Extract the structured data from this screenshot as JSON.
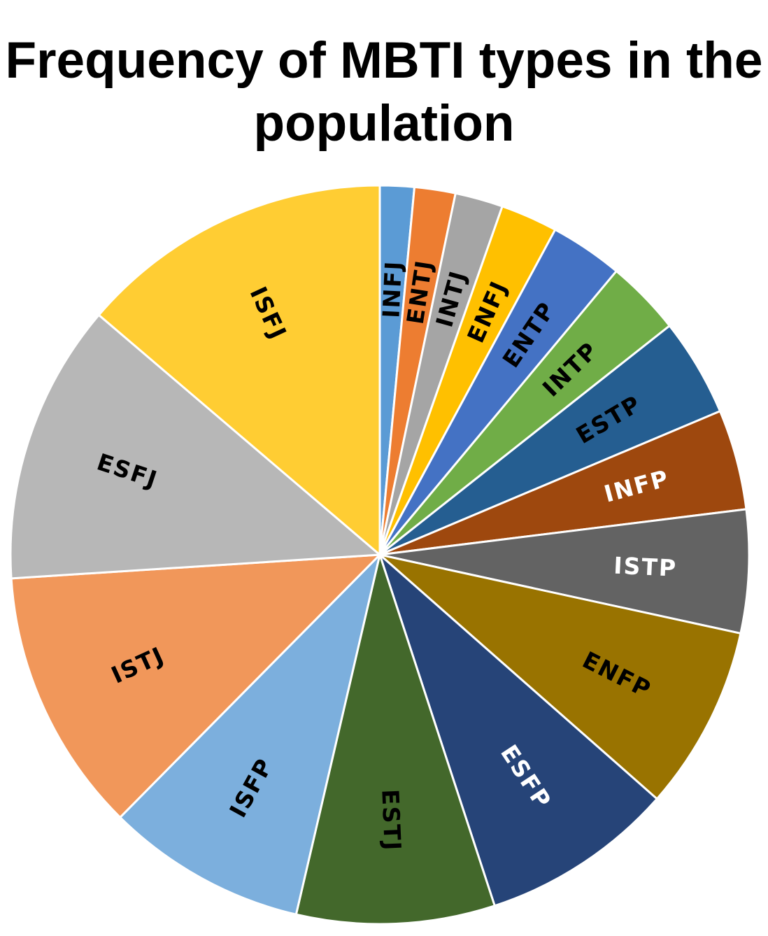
{
  "chart_data": {
    "type": "pie",
    "title": "Frequency of MBTI types in the population",
    "start_angle_deg": 0,
    "direction": "clockwise",
    "legend": "none",
    "slices": [
      {
        "label": "INFJ",
        "value": 1.5,
        "color": "#5b9bd5",
        "label_color": "#000000"
      },
      {
        "label": "ENTJ",
        "value": 1.8,
        "color": "#ed7d31",
        "label_color": "#000000"
      },
      {
        "label": "INTJ",
        "value": 2.1,
        "color": "#a5a5a5",
        "label_color": "#000000"
      },
      {
        "label": "ENFJ",
        "value": 2.5,
        "color": "#ffc000",
        "label_color": "#000000"
      },
      {
        "label": "ENTP",
        "value": 3.2,
        "color": "#4472c4",
        "label_color": "#000000"
      },
      {
        "label": "INTP",
        "value": 3.3,
        "color": "#70ad47",
        "label_color": "#000000"
      },
      {
        "label": "ESTP",
        "value": 4.3,
        "color": "#255e91",
        "label_color": "#000000"
      },
      {
        "label": "INFP",
        "value": 4.4,
        "color": "#9e480e",
        "label_color": "#ffffff"
      },
      {
        "label": "ISTP",
        "value": 5.4,
        "color": "#636363",
        "label_color": "#ffffff"
      },
      {
        "label": "ENFP",
        "value": 8.1,
        "color": "#997300",
        "label_color": "#000000"
      },
      {
        "label": "ESFP",
        "value": 8.5,
        "color": "#264478",
        "label_color": "#ffffff"
      },
      {
        "label": "ESTJ",
        "value": 8.7,
        "color": "#43682b",
        "label_color": "#000000"
      },
      {
        "label": "ISFP",
        "value": 8.8,
        "color": "#7cafdd",
        "label_color": "#000000"
      },
      {
        "label": "ISTJ",
        "value": 11.6,
        "color": "#f1975a",
        "label_color": "#000000"
      },
      {
        "label": "ESFJ",
        "value": 12.3,
        "color": "#b7b7b7",
        "label_color": "#000000"
      },
      {
        "label": "ISFJ",
        "value": 13.8,
        "color": "#ffcd33",
        "label_color": "#000000"
      }
    ]
  }
}
